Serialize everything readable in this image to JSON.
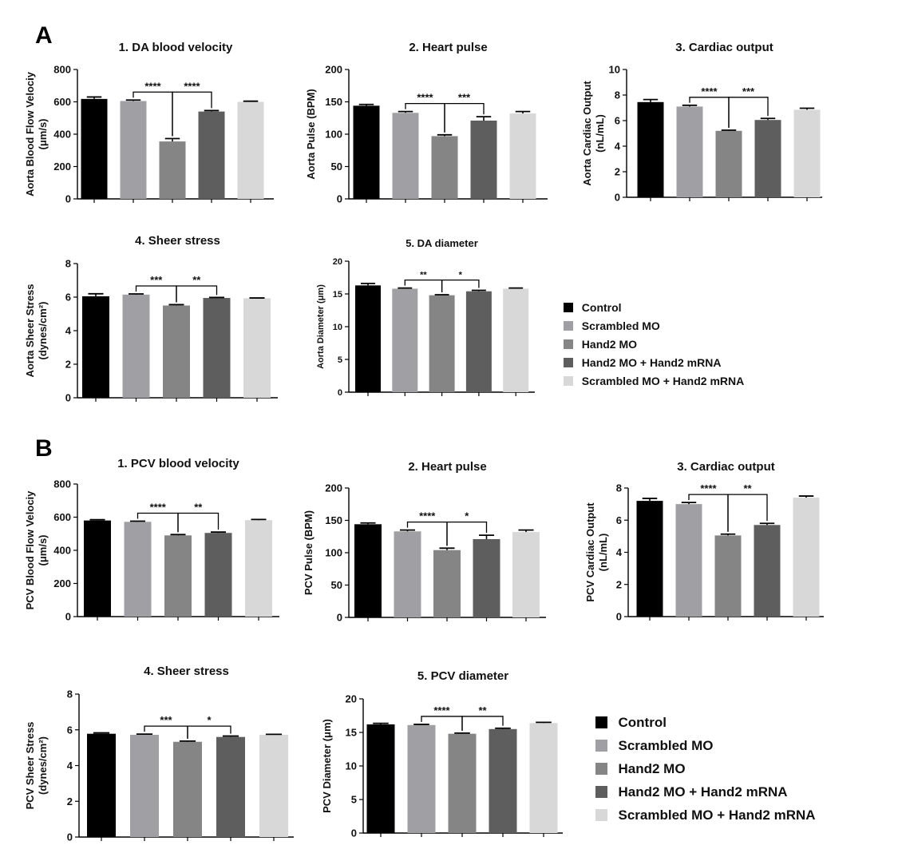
{
  "panels": {
    "a": "A",
    "b": "B"
  },
  "groups": [
    "Control",
    "Scrambled MO",
    "Hand2 MO",
    "Hand2 MO + Hand2 mRNA",
    "Scrambled MO + Hand2 mRNA"
  ],
  "colors": {
    "Control": "#000000",
    "Scrambled MO": "#a0a0a4",
    "Hand2 MO": "#858585",
    "Hand2 MO + Hand2 mRNA": "#5e5e5e",
    "Scrambled MO + Hand2 mRNA": "#d8d8d8"
  },
  "legend_a": [
    "Control",
    "Scrambled MO",
    "Hand2 MO",
    "Hand2 MO + Hand2 mRNA",
    "Scrambled MO + Hand2 mRNA"
  ],
  "legend_b": [
    "Control",
    "Scrambled MO",
    "Hand2 MO",
    "Hand2 MO + Hand2 mRNA",
    "Scrambled MO + Hand2 mRNA"
  ],
  "chart_data": [
    {
      "id": "a1",
      "type": "bar",
      "title": "1. DA blood velocity",
      "ylabel": [
        "Aorta Blood Flow Velociy",
        "(μm/s)"
      ],
      "ylim": [
        0,
        800
      ],
      "yticks": [
        0,
        200,
        400,
        600,
        800
      ],
      "values": [
        618,
        605,
        355,
        540,
        600
      ],
      "errors": [
        12,
        6,
        18,
        6,
        4
      ],
      "significance": [
        {
          "from": 1,
          "to": 2,
          "label": "****"
        },
        {
          "from": 2,
          "to": 3,
          "label": "****"
        }
      ]
    },
    {
      "id": "a2",
      "type": "bar",
      "title": "2. Heart pulse",
      "ylabel": [
        "Aorta Pulse (BPM)"
      ],
      "ylim": [
        0,
        200
      ],
      "yticks": [
        0,
        50,
        100,
        150,
        200
      ],
      "values": [
        144,
        133,
        97,
        121,
        132
      ],
      "errors": [
        2,
        2,
        2,
        6,
        3
      ],
      "significance": [
        {
          "from": 1,
          "to": 2,
          "label": "****"
        },
        {
          "from": 2,
          "to": 3,
          "label": "***"
        }
      ]
    },
    {
      "id": "a3",
      "type": "bar",
      "title": "3. Cardiac output",
      "ylabel": [
        "Aorta Cardiac Output",
        "(nL/mL)"
      ],
      "ylim": [
        0,
        10
      ],
      "yticks": [
        0,
        2,
        4,
        6,
        8,
        10
      ],
      "values": [
        7.45,
        7.1,
        5.2,
        6.05,
        6.85
      ],
      "errors": [
        0.2,
        0.1,
        0.05,
        0.12,
        0.12
      ],
      "significance": [
        {
          "from": 1,
          "to": 2,
          "label": "****"
        },
        {
          "from": 2,
          "to": 3,
          "label": "***"
        }
      ]
    },
    {
      "id": "a4",
      "type": "bar",
      "title": "4.  Sheer stress",
      "ylabel": [
        "Aorta Sheer Stress",
        "(dynes/cm²)"
      ],
      "ylim": [
        0,
        8
      ],
      "yticks": [
        0,
        2,
        4,
        6,
        8
      ],
      "values": [
        6.05,
        6.15,
        5.5,
        5.95,
        5.93
      ],
      "errors": [
        0.15,
        0.04,
        0.05,
        0.03,
        0.02
      ],
      "significance": [
        {
          "from": 1,
          "to": 2,
          "label": "***"
        },
        {
          "from": 2,
          "to": 3,
          "label": "**"
        }
      ]
    },
    {
      "id": "a5",
      "type": "bar",
      "title": "5. DA diameter",
      "ylabel": [
        "Aorta Diameter (μm)"
      ],
      "ylim": [
        0,
        20
      ],
      "yticks": [
        0,
        5,
        10,
        15,
        20
      ],
      "values": [
        16.3,
        15.8,
        14.8,
        15.4,
        15.8
      ],
      "errors": [
        0.3,
        0.1,
        0.08,
        0.15,
        0.1
      ],
      "significance": [
        {
          "from": 1,
          "to": 2,
          "label": "**"
        },
        {
          "from": 2,
          "to": 3,
          "label": "*"
        }
      ]
    },
    {
      "id": "b1",
      "type": "bar",
      "title": "1. PCV blood velocity",
      "ylabel": [
        "PCV Blood Flow Velociy",
        "(μm/s)"
      ],
      "ylim": [
        0,
        800
      ],
      "yticks": [
        0,
        200,
        400,
        600,
        800
      ],
      "values": [
        580,
        572,
        490,
        505,
        582
      ],
      "errors": [
        5,
        4,
        5,
        5,
        4
      ],
      "significance": [
        {
          "from": 1,
          "to": 2,
          "label": "****"
        },
        {
          "from": 2,
          "to": 3,
          "label": "**"
        }
      ]
    },
    {
      "id": "b2",
      "type": "bar",
      "title": "2. Heart pulse",
      "ylabel": [
        "PCV Pulse (BPM)"
      ],
      "ylim": [
        0,
        200
      ],
      "yticks": [
        0,
        50,
        100,
        150,
        200
      ],
      "values": [
        144,
        133,
        104,
        121,
        132
      ],
      "errors": [
        2,
        2,
        3,
        6,
        3
      ],
      "significance": [
        {
          "from": 1,
          "to": 2,
          "label": "****"
        },
        {
          "from": 2,
          "to": 3,
          "label": "*"
        }
      ]
    },
    {
      "id": "b3",
      "type": "bar",
      "title": "3. Cardiac output",
      "ylabel": [
        "PCV Cardiac Output",
        "(nL/mL)"
      ],
      "ylim": [
        0,
        8
      ],
      "yticks": [
        0,
        2,
        4,
        6,
        8
      ],
      "values": [
        7.2,
        7.0,
        5.05,
        5.7,
        7.4
      ],
      "errors": [
        0.15,
        0.1,
        0.08,
        0.1,
        0.1
      ],
      "significance": [
        {
          "from": 1,
          "to": 2,
          "label": "****"
        },
        {
          "from": 2,
          "to": 3,
          "label": "**"
        }
      ]
    },
    {
      "id": "b4",
      "type": "bar",
      "title": "4. Sheer stress",
      "ylabel": [
        "PCV Sheer Stress",
        "(dynes/cm²)"
      ],
      "ylim": [
        0,
        8
      ],
      "yticks": [
        0,
        2,
        4,
        6,
        8
      ],
      "values": [
        5.78,
        5.72,
        5.33,
        5.6,
        5.72
      ],
      "errors": [
        0.05,
        0.04,
        0.04,
        0.05,
        0.03
      ],
      "significance": [
        {
          "from": 1,
          "to": 2,
          "label": "***"
        },
        {
          "from": 2,
          "to": 3,
          "label": "*"
        }
      ]
    },
    {
      "id": "b5",
      "type": "bar",
      "title": "5. PCV diameter",
      "ylabel": [
        "PCV Diameter (μm)"
      ],
      "ylim": [
        0,
        20
      ],
      "yticks": [
        0,
        5,
        10,
        15,
        20
      ],
      "values": [
        16.2,
        16.1,
        14.8,
        15.5,
        16.4
      ],
      "errors": [
        0.15,
        0.1,
        0.1,
        0.12,
        0.1
      ],
      "significance": [
        {
          "from": 1,
          "to": 2,
          "label": "****"
        },
        {
          "from": 2,
          "to": 3,
          "label": "**"
        }
      ]
    }
  ]
}
